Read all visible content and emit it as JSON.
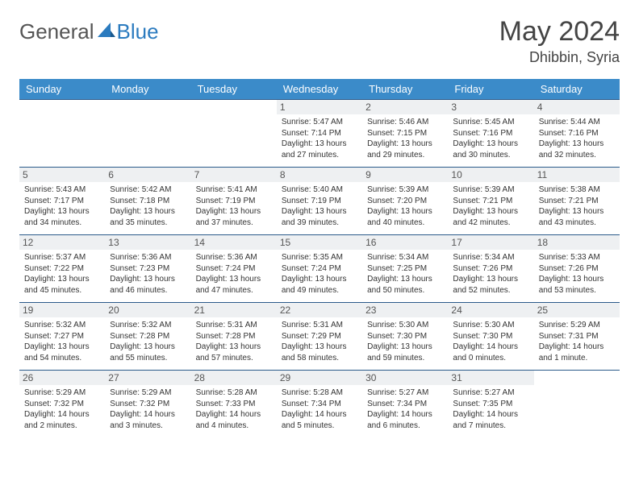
{
  "logo": {
    "part1": "General",
    "part2": "Blue"
  },
  "title": {
    "month": "May 2024",
    "location": "Dhibbin, Syria"
  },
  "style": {
    "header_bg": "#3b8bc9",
    "header_text": "#ffffff",
    "day_bg": "#eef0f2",
    "cell_border": "#2a5a8a",
    "text_color": "#333333",
    "month_color": "#444444",
    "logo_gray": "#555555",
    "logo_blue": "#2b7bbf",
    "body_bg": "#ffffff",
    "day_fontsize": 12,
    "info_fontsize": 10,
    "weekday_fontsize": 13
  },
  "weekdays": [
    "Sunday",
    "Monday",
    "Tuesday",
    "Wednesday",
    "Thursday",
    "Friday",
    "Saturday"
  ],
  "weeks": [
    [
      {
        "day": "",
        "sunrise": "",
        "sunset": "",
        "daylight": ""
      },
      {
        "day": "",
        "sunrise": "",
        "sunset": "",
        "daylight": ""
      },
      {
        "day": "",
        "sunrise": "",
        "sunset": "",
        "daylight": ""
      },
      {
        "day": "1",
        "sunrise": "Sunrise: 5:47 AM",
        "sunset": "Sunset: 7:14 PM",
        "daylight": "Daylight: 13 hours and 27 minutes."
      },
      {
        "day": "2",
        "sunrise": "Sunrise: 5:46 AM",
        "sunset": "Sunset: 7:15 PM",
        "daylight": "Daylight: 13 hours and 29 minutes."
      },
      {
        "day": "3",
        "sunrise": "Sunrise: 5:45 AM",
        "sunset": "Sunset: 7:16 PM",
        "daylight": "Daylight: 13 hours and 30 minutes."
      },
      {
        "day": "4",
        "sunrise": "Sunrise: 5:44 AM",
        "sunset": "Sunset: 7:16 PM",
        "daylight": "Daylight: 13 hours and 32 minutes."
      }
    ],
    [
      {
        "day": "5",
        "sunrise": "Sunrise: 5:43 AM",
        "sunset": "Sunset: 7:17 PM",
        "daylight": "Daylight: 13 hours and 34 minutes."
      },
      {
        "day": "6",
        "sunrise": "Sunrise: 5:42 AM",
        "sunset": "Sunset: 7:18 PM",
        "daylight": "Daylight: 13 hours and 35 minutes."
      },
      {
        "day": "7",
        "sunrise": "Sunrise: 5:41 AM",
        "sunset": "Sunset: 7:19 PM",
        "daylight": "Daylight: 13 hours and 37 minutes."
      },
      {
        "day": "8",
        "sunrise": "Sunrise: 5:40 AM",
        "sunset": "Sunset: 7:19 PM",
        "daylight": "Daylight: 13 hours and 39 minutes."
      },
      {
        "day": "9",
        "sunrise": "Sunrise: 5:39 AM",
        "sunset": "Sunset: 7:20 PM",
        "daylight": "Daylight: 13 hours and 40 minutes."
      },
      {
        "day": "10",
        "sunrise": "Sunrise: 5:39 AM",
        "sunset": "Sunset: 7:21 PM",
        "daylight": "Daylight: 13 hours and 42 minutes."
      },
      {
        "day": "11",
        "sunrise": "Sunrise: 5:38 AM",
        "sunset": "Sunset: 7:21 PM",
        "daylight": "Daylight: 13 hours and 43 minutes."
      }
    ],
    [
      {
        "day": "12",
        "sunrise": "Sunrise: 5:37 AM",
        "sunset": "Sunset: 7:22 PM",
        "daylight": "Daylight: 13 hours and 45 minutes."
      },
      {
        "day": "13",
        "sunrise": "Sunrise: 5:36 AM",
        "sunset": "Sunset: 7:23 PM",
        "daylight": "Daylight: 13 hours and 46 minutes."
      },
      {
        "day": "14",
        "sunrise": "Sunrise: 5:36 AM",
        "sunset": "Sunset: 7:24 PM",
        "daylight": "Daylight: 13 hours and 47 minutes."
      },
      {
        "day": "15",
        "sunrise": "Sunrise: 5:35 AM",
        "sunset": "Sunset: 7:24 PM",
        "daylight": "Daylight: 13 hours and 49 minutes."
      },
      {
        "day": "16",
        "sunrise": "Sunrise: 5:34 AM",
        "sunset": "Sunset: 7:25 PM",
        "daylight": "Daylight: 13 hours and 50 minutes."
      },
      {
        "day": "17",
        "sunrise": "Sunrise: 5:34 AM",
        "sunset": "Sunset: 7:26 PM",
        "daylight": "Daylight: 13 hours and 52 minutes."
      },
      {
        "day": "18",
        "sunrise": "Sunrise: 5:33 AM",
        "sunset": "Sunset: 7:26 PM",
        "daylight": "Daylight: 13 hours and 53 minutes."
      }
    ],
    [
      {
        "day": "19",
        "sunrise": "Sunrise: 5:32 AM",
        "sunset": "Sunset: 7:27 PM",
        "daylight": "Daylight: 13 hours and 54 minutes."
      },
      {
        "day": "20",
        "sunrise": "Sunrise: 5:32 AM",
        "sunset": "Sunset: 7:28 PM",
        "daylight": "Daylight: 13 hours and 55 minutes."
      },
      {
        "day": "21",
        "sunrise": "Sunrise: 5:31 AM",
        "sunset": "Sunset: 7:28 PM",
        "daylight": "Daylight: 13 hours and 57 minutes."
      },
      {
        "day": "22",
        "sunrise": "Sunrise: 5:31 AM",
        "sunset": "Sunset: 7:29 PM",
        "daylight": "Daylight: 13 hours and 58 minutes."
      },
      {
        "day": "23",
        "sunrise": "Sunrise: 5:30 AM",
        "sunset": "Sunset: 7:30 PM",
        "daylight": "Daylight: 13 hours and 59 minutes."
      },
      {
        "day": "24",
        "sunrise": "Sunrise: 5:30 AM",
        "sunset": "Sunset: 7:30 PM",
        "daylight": "Daylight: 14 hours and 0 minutes."
      },
      {
        "day": "25",
        "sunrise": "Sunrise: 5:29 AM",
        "sunset": "Sunset: 7:31 PM",
        "daylight": "Daylight: 14 hours and 1 minute."
      }
    ],
    [
      {
        "day": "26",
        "sunrise": "Sunrise: 5:29 AM",
        "sunset": "Sunset: 7:32 PM",
        "daylight": "Daylight: 14 hours and 2 minutes."
      },
      {
        "day": "27",
        "sunrise": "Sunrise: 5:29 AM",
        "sunset": "Sunset: 7:32 PM",
        "daylight": "Daylight: 14 hours and 3 minutes."
      },
      {
        "day": "28",
        "sunrise": "Sunrise: 5:28 AM",
        "sunset": "Sunset: 7:33 PM",
        "daylight": "Daylight: 14 hours and 4 minutes."
      },
      {
        "day": "29",
        "sunrise": "Sunrise: 5:28 AM",
        "sunset": "Sunset: 7:34 PM",
        "daylight": "Daylight: 14 hours and 5 minutes."
      },
      {
        "day": "30",
        "sunrise": "Sunrise: 5:27 AM",
        "sunset": "Sunset: 7:34 PM",
        "daylight": "Daylight: 14 hours and 6 minutes."
      },
      {
        "day": "31",
        "sunrise": "Sunrise: 5:27 AM",
        "sunset": "Sunset: 7:35 PM",
        "daylight": "Daylight: 14 hours and 7 minutes."
      },
      {
        "day": "",
        "sunrise": "",
        "sunset": "",
        "daylight": ""
      }
    ]
  ]
}
